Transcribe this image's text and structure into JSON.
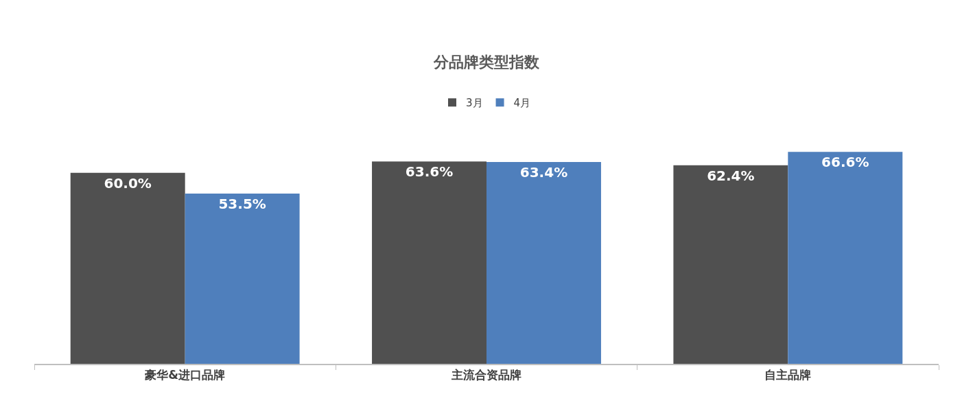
{
  "chart_data": {
    "type": "bar",
    "title": "分品牌类型指数",
    "categories": [
      "豪华&进口品牌",
      "主流合资品牌",
      "自主品牌"
    ],
    "series": [
      {
        "name": "3月",
        "color": "#505050",
        "values": [
          60.0,
          63.6,
          62.4
        ],
        "value_labels": [
          "60.0%",
          "63.6%",
          "62.4%"
        ]
      },
      {
        "name": "4月",
        "color": "#4f7fbc",
        "values": [
          53.5,
          63.4,
          66.6
        ],
        "value_labels": [
          "53.5%",
          "63.4%",
          "66.6%"
        ]
      }
    ],
    "legend": "top",
    "tick_labels": "x"
  }
}
